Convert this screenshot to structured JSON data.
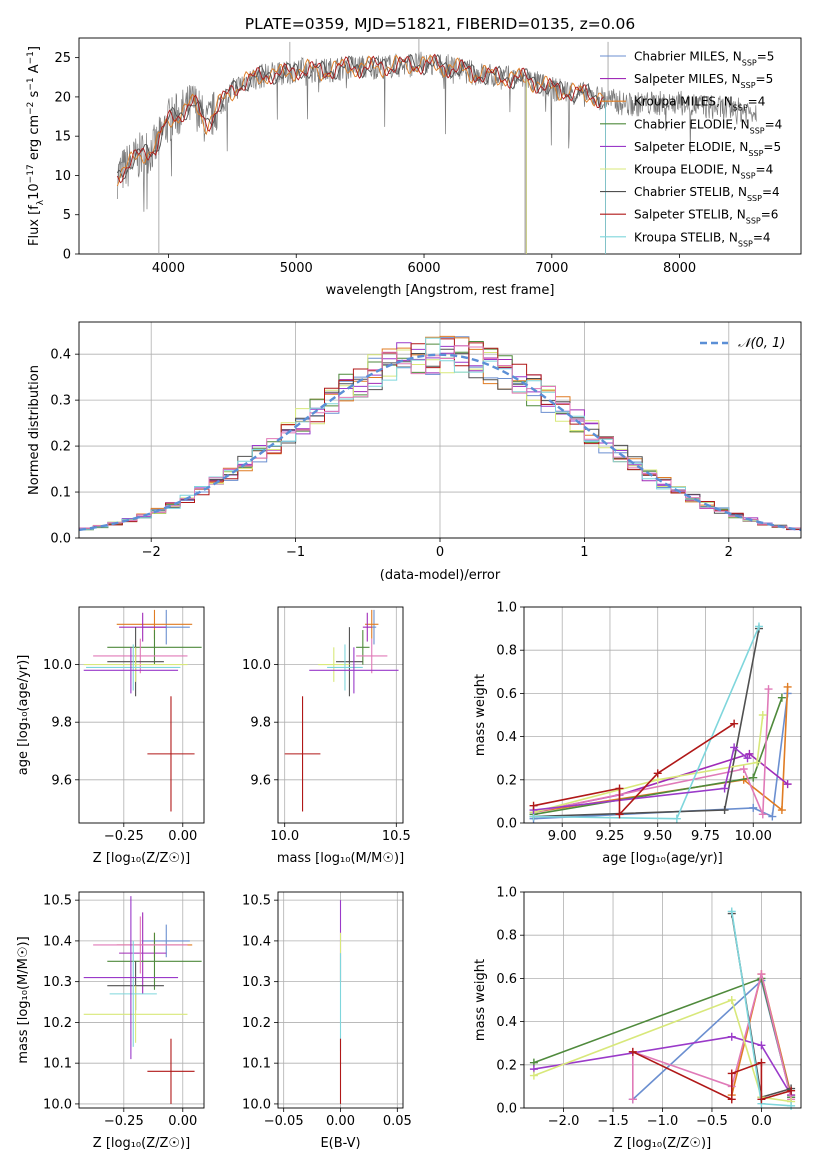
{
  "colors": {
    "Chabrier MILES": "#6b8fd0",
    "Salpeter MILES": "#a02bb8",
    "Kroupa MILES": "#e07c23",
    "Chabrier ELODIE": "#4f8a3c",
    "Salpeter ELODIE": "#9a3ac9",
    "Kroupa ELODIE": "#d8e87a",
    "Chabrier STELIB": "#505050",
    "Salpeter STELIB": "#b01818",
    "Kroupa STELIB": "#7fd6dc",
    "extra_pink": "#e07ab8",
    "normal_curve": "#5b8fd6"
  },
  "chart_data": [
    {
      "type": "line",
      "title": "PLATE=0359, MJD=51821, FIBERID=0135, z=0.06",
      "xlabel": "wavelength [Angstrom, rest frame]",
      "ylabel_parts": [
        "Flux [f",
        "λ",
        "10",
        "−17",
        " erg cm",
        "−2",
        " s",
        "−1",
        " A",
        "−1",
        "]"
      ],
      "xlim": [
        3300,
        8950
      ],
      "ylim": [
        0,
        27.5
      ],
      "xticks": [
        4000,
        5000,
        6000,
        7000,
        8000
      ],
      "yticks": [
        0,
        5,
        10,
        15,
        20,
        25
      ],
      "legend_position": "top-right",
      "series": [
        {
          "name": "Chabrier MILES",
          "nssp": "5",
          "end": 7420
        },
        {
          "name": "Salpeter MILES",
          "nssp": "5",
          "end": 7420
        },
        {
          "name": "Kroupa MILES",
          "nssp": "4",
          "end": 7420
        },
        {
          "name": "Chabrier ELODIE",
          "nssp": "4",
          "end": 6800
        },
        {
          "name": "Salpeter ELODIE",
          "nssp": "5",
          "end": 6800
        },
        {
          "name": "Kroupa ELODIE",
          "nssp": "4",
          "end": 6800
        },
        {
          "name": "Chabrier STELIB",
          "nssp": "4",
          "end": 7420
        },
        {
          "name": "Salpeter STELIB",
          "nssp": "6",
          "end": 7420
        },
        {
          "name": "Kroupa STELIB",
          "nssp": "4",
          "end": 7420
        }
      ],
      "continuum": {
        "x": [
          3600,
          3700,
          3800,
          3900,
          4000,
          4100,
          4200,
          4300,
          4400,
          4500,
          4600,
          4700,
          4800,
          4900,
          5000,
          5200,
          5400,
          5600,
          5800,
          6000,
          6200,
          6400,
          6600,
          6800,
          7000,
          7200,
          7400,
          7600,
          7800,
          8000,
          8200,
          8400,
          8600
        ],
        "y": [
          10.0,
          11.5,
          12.8,
          13.6,
          17.0,
          18.0,
          19.2,
          16.5,
          19.0,
          20.8,
          22.0,
          22.5,
          23.0,
          22.8,
          23.5,
          23.3,
          23.8,
          23.8,
          24.0,
          24.2,
          23.8,
          23.0,
          22.5,
          22.3,
          21.0,
          20.5,
          19.8,
          19.0,
          19.2,
          19.2,
          18.8,
          18.4,
          18.2
        ]
      },
      "model_end": 8620,
      "noisy_series_end": 8600
    },
    {
      "type": "bar",
      "title": "",
      "xlabel": "(data-model)/error",
      "ylabel": "Normed distribution",
      "xlim": [
        -2.5,
        2.5
      ],
      "ylim": [
        0,
        0.47
      ],
      "xticks": [
        -2,
        -1,
        0,
        1,
        2
      ],
      "yticks": [
        0.0,
        0.1,
        0.2,
        0.3,
        0.4
      ],
      "legend": "𝒩(0, 1)",
      "legend_position": "top-right",
      "histogram": "step histograms, one per model, scattered around the unit normal curve"
    },
    {
      "type": "scatter",
      "xlabel": "Z [log₁₀(Z/Z☉)]",
      "ylabel": "age  [log₁₀(age/yr)]",
      "xlim": [
        -0.44,
        0.09
      ],
      "ylim": [
        9.45,
        10.2
      ],
      "xticks": [
        -0.25,
        0.0
      ],
      "xticklabels": [
        "−0.25",
        "0.00"
      ],
      "yticks": [
        9.6,
        9.8,
        10.0
      ],
      "points": [
        {
          "c": "#6b8fd0",
          "x": -0.07,
          "y": 10.13,
          "ex": 0.1,
          "ey": 0.06
        },
        {
          "c": "#e07c23",
          "x": -0.12,
          "y": 10.14,
          "ex": 0.16,
          "ey": 0.05
        },
        {
          "c": "#a02bb8",
          "x": -0.17,
          "y": 10.13,
          "ex": 0.1,
          "ey": 0.05
        },
        {
          "c": "#4f8a3c",
          "x": -0.12,
          "y": 10.06,
          "ex": 0.2,
          "ey": 0.06
        },
        {
          "c": "#e07ab8",
          "x": -0.18,
          "y": 10.03,
          "ex": 0.2,
          "ey": 0.06
        },
        {
          "c": "#505050",
          "x": -0.2,
          "y": 10.01,
          "ex": 0.12,
          "ey": 0.12
        },
        {
          "c": "#d8e87a",
          "x": -0.2,
          "y": 10.0,
          "ex": 0.22,
          "ey": 0.06
        },
        {
          "c": "#7fd6dc",
          "x": -0.21,
          "y": 9.99,
          "ex": 0.2,
          "ey": 0.08
        },
        {
          "c": "#9a3ac9",
          "x": -0.22,
          "y": 9.98,
          "ex": 0.2,
          "ey": 0.08
        },
        {
          "c": "#b01818",
          "x": -0.05,
          "y": 9.69,
          "ex": 0.1,
          "ey": 0.2
        }
      ]
    },
    {
      "type": "scatter",
      "xlabel": "mass [log₁₀(M/M☉)]",
      "ylabel": "",
      "xlim": [
        9.97,
        10.53
      ],
      "ylim": [
        9.45,
        10.2
      ],
      "xticks": [
        10.0,
        10.5
      ],
      "xticklabels": [
        "10.0",
        "10.5"
      ],
      "yticks": [
        9.6,
        9.8,
        10.0
      ],
      "points": [
        {
          "c": "#6b8fd0",
          "x": 10.4,
          "y": 10.13,
          "ex": 0.01,
          "ey": 0.06
        },
        {
          "c": "#e07c23",
          "x": 10.39,
          "y": 10.14,
          "ex": 0.03,
          "ey": 0.05
        },
        {
          "c": "#a02bb8",
          "x": 10.37,
          "y": 10.13,
          "ex": 0.02,
          "ey": 0.05
        },
        {
          "c": "#4f8a3c",
          "x": 10.35,
          "y": 10.06,
          "ex": 0.03,
          "ey": 0.06
        },
        {
          "c": "#e07ab8",
          "x": 10.39,
          "y": 10.03,
          "ex": 0.07,
          "ey": 0.06
        },
        {
          "c": "#505050",
          "x": 10.29,
          "y": 10.01,
          "ex": 0.06,
          "ey": 0.12
        },
        {
          "c": "#d8e87a",
          "x": 10.22,
          "y": 10.0,
          "ex": 0.07,
          "ey": 0.06
        },
        {
          "c": "#7fd6dc",
          "x": 10.27,
          "y": 9.99,
          "ex": 0.08,
          "ey": 0.08
        },
        {
          "c": "#9a3ac9",
          "x": 10.31,
          "y": 9.98,
          "ex": 0.2,
          "ey": 0.08
        },
        {
          "c": "#b01818",
          "x": 10.08,
          "y": 9.69,
          "ex": 0.08,
          "ey": 0.2
        }
      ]
    },
    {
      "type": "line",
      "xlabel": "age  [log₁₀(age/yr)]",
      "ylabel": "mass weight",
      "xlim": [
        8.8,
        10.25
      ],
      "ylim": [
        0,
        1.0
      ],
      "xticks": [
        9.0,
        9.25,
        9.5,
        9.75,
        10.0
      ],
      "xticklabels": [
        "9.00",
        "9.25",
        "9.50",
        "9.75",
        "10.00"
      ],
      "yticks": [
        0.0,
        0.2,
        0.4,
        0.6,
        0.8,
        1.0
      ],
      "series": [
        {
          "c": "#6b8fd0",
          "x": [
            8.85,
            10.0,
            10.1,
            10.18
          ],
          "y": [
            0.02,
            0.07,
            0.03,
            0.6
          ]
        },
        {
          "c": "#e07c23",
          "x": [
            8.85,
            9.95,
            10.15,
            10.18
          ],
          "y": [
            0.05,
            0.2,
            0.06,
            0.63
          ]
        },
        {
          "c": "#a02bb8",
          "x": [
            8.85,
            9.3,
            9.98,
            10.18
          ],
          "y": [
            0.05,
            0.13,
            0.32,
            0.18
          ]
        },
        {
          "c": "#4f8a3c",
          "x": [
            8.85,
            10.0,
            10.15
          ],
          "y": [
            0.04,
            0.21,
            0.58
          ]
        },
        {
          "c": "#e07ab8",
          "x": [
            8.85,
            9.95,
            10.05,
            10.08
          ],
          "y": [
            0.05,
            0.25,
            0.04,
            0.62
          ]
        },
        {
          "c": "#505050",
          "x": [
            8.85,
            9.85,
            10.03
          ],
          "y": [
            0.03,
            0.06,
            0.9
          ]
        },
        {
          "c": "#d8e87a",
          "x": [
            8.85,
            9.5,
            10.02,
            10.05
          ],
          "y": [
            0.05,
            0.2,
            0.28,
            0.5
          ]
        },
        {
          "c": "#7fd6dc",
          "x": [
            8.85,
            9.6,
            10.03
          ],
          "y": [
            0.03,
            0.02,
            0.91
          ]
        },
        {
          "c": "#9a3ac9",
          "x": [
            8.85,
            9.85,
            9.9,
            9.97
          ],
          "y": [
            0.06,
            0.16,
            0.35,
            0.3
          ]
        },
        {
          "c": "#b01818",
          "x": [
            8.85,
            9.3,
            9.3,
            9.5,
            9.9
          ],
          "y": [
            0.08,
            0.16,
            0.04,
            0.23,
            0.46
          ]
        }
      ]
    },
    {
      "type": "scatter",
      "xlabel": "Z [log₁₀(Z/Z☉)]",
      "ylabel": "mass [log₁₀(M/M☉)]",
      "xlim": [
        -0.44,
        0.09
      ],
      "ylim": [
        9.99,
        10.52
      ],
      "xticks": [
        -0.25,
        0.0
      ],
      "xticklabels": [
        "−0.25",
        "0.00"
      ],
      "yticks": [
        10.0,
        10.1,
        10.2,
        10.3,
        10.4,
        10.5
      ],
      "points": [
        {
          "c": "#6b8fd0",
          "x": -0.07,
          "y": 10.4,
          "ex": 0.1,
          "ey": 0.04
        },
        {
          "c": "#e07c23",
          "x": -0.12,
          "y": 10.39,
          "ex": 0.16,
          "ey": 0.03
        },
        {
          "c": "#a02bb8",
          "x": -0.17,
          "y": 10.37,
          "ex": 0.1,
          "ey": 0.1
        },
        {
          "c": "#4f8a3c",
          "x": -0.12,
          "y": 10.35,
          "ex": 0.2,
          "ey": 0.07
        },
        {
          "c": "#e07ab8",
          "x": -0.18,
          "y": 10.39,
          "ex": 0.2,
          "ey": 0.07
        },
        {
          "c": "#505050",
          "x": -0.2,
          "y": 10.29,
          "ex": 0.12,
          "ey": 0.06
        },
        {
          "c": "#d8e87a",
          "x": -0.2,
          "y": 10.22,
          "ex": 0.22,
          "ey": 0.07
        },
        {
          "c": "#7fd6dc",
          "x": -0.21,
          "y": 10.27,
          "ex": 0.1,
          "ey": 0.13
        },
        {
          "c": "#9a3ac9",
          "x": -0.22,
          "y": 10.31,
          "ex": 0.2,
          "ey": 0.2
        },
        {
          "c": "#b01818",
          "x": -0.05,
          "y": 10.08,
          "ex": 0.1,
          "ey": 0.08
        }
      ]
    },
    {
      "type": "scatter",
      "xlabel": "E(B-V)",
      "ylabel": "",
      "xlim": [
        -0.055,
        0.055
      ],
      "ylim": [
        9.99,
        10.52
      ],
      "xticks": [
        -0.05,
        0.0,
        0.05
      ],
      "xticklabels": [
        "−0.05",
        "0.00",
        "0.05"
      ],
      "yticks": [
        10.0,
        10.1,
        10.2,
        10.3,
        10.4,
        10.5
      ],
      "points": [
        {
          "c": "#9a3ac9",
          "x": 0.0,
          "y": 10.4,
          "ex": 0.0,
          "ey": 0.1
        },
        {
          "c": "#d8e87a",
          "x": 0.0,
          "y": 10.36,
          "ex": 0.0,
          "ey": 0.06
        },
        {
          "c": "#7fd6dc",
          "x": 0.0,
          "y": 10.25,
          "ex": 0.0,
          "ey": 0.12
        },
        {
          "c": "#b01818",
          "x": 0.0,
          "y": 10.08,
          "ex": 0.0,
          "ey": 0.08
        }
      ]
    },
    {
      "type": "line",
      "xlabel": "Z [log₁₀(Z/Z☉)]",
      "ylabel": "mass weight",
      "xlim": [
        -2.4,
        0.4
      ],
      "ylim": [
        0,
        1.0
      ],
      "xticks": [
        -2.0,
        -1.5,
        -1.0,
        -0.5,
        0.0
      ],
      "xticklabels": [
        "−2.0",
        "−1.5",
        "−1.0",
        "−0.5",
        "0.0"
      ],
      "yticks": [
        0.0,
        0.2,
        0.4,
        0.6,
        0.8,
        1.0
      ],
      "series": [
        {
          "c": "#6b8fd0",
          "x": [
            -1.3,
            0.0,
            0.3
          ],
          "y": [
            0.04,
            0.59,
            0.05
          ]
        },
        {
          "c": "#e07c23",
          "x": [
            -0.3,
            0.0,
            0.3
          ],
          "y": [
            0.06,
            0.62,
            0.06
          ]
        },
        {
          "c": "#4f8a3c",
          "x": [
            -2.3,
            0.0,
            0.3
          ],
          "y": [
            0.21,
            0.6,
            0.05
          ]
        },
        {
          "c": "#9a3ac9",
          "x": [
            -2.3,
            -0.3,
            0.0,
            0.3
          ],
          "y": [
            0.18,
            0.33,
            0.29,
            0.06
          ]
        },
        {
          "c": "#e07ab8",
          "x": [
            -1.3,
            -1.3,
            -0.3,
            0.0,
            0.3
          ],
          "y": [
            0.04,
            0.26,
            0.1,
            0.62,
            0.04
          ]
        },
        {
          "c": "#505050",
          "x": [
            -0.3,
            0.0,
            0.3
          ],
          "y": [
            0.9,
            0.05,
            0.09
          ]
        },
        {
          "c": "#d8e87a",
          "x": [
            -2.3,
            -0.3,
            0.0,
            0.3
          ],
          "y": [
            0.15,
            0.5,
            0.05,
            0.03
          ]
        },
        {
          "c": "#7fd6dc",
          "x": [
            -0.3,
            0.0,
            0.3
          ],
          "y": [
            0.91,
            0.02,
            0.01
          ]
        },
        {
          "c": "#b01818",
          "x": [
            -1.3,
            -0.3,
            -0.3,
            0.0,
            0.0,
            0.3
          ],
          "y": [
            0.26,
            0.04,
            0.16,
            0.21,
            0.04,
            0.08
          ]
        }
      ]
    }
  ]
}
